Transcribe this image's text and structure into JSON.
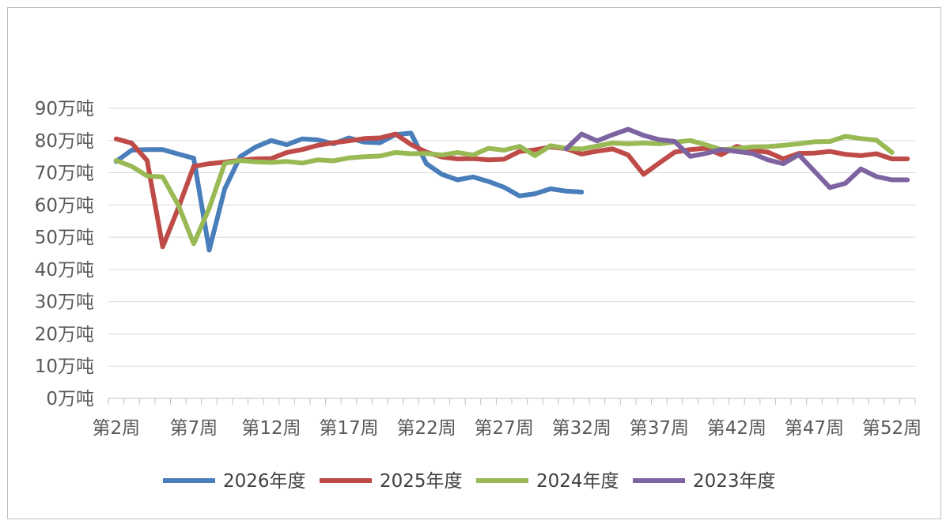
{
  "chart_data": {
    "type": "line",
    "title": "",
    "xlabel": "",
    "ylabel": "",
    "y_unit_suffix": "万吨",
    "ylim": [
      0,
      90
    ],
    "yticks": [
      0,
      10,
      20,
      30,
      40,
      50,
      60,
      70,
      80,
      90
    ],
    "ytick_labels": [
      "0万吨",
      "10万吨",
      "20万吨",
      "30万吨",
      "40万吨",
      "50万吨",
      "60万吨",
      "70万吨",
      "80万吨",
      "90万吨"
    ],
    "x_weeks": [
      2,
      3,
      4,
      5,
      6,
      7,
      8,
      9,
      10,
      11,
      12,
      13,
      14,
      15,
      16,
      17,
      18,
      19,
      20,
      21,
      22,
      23,
      24,
      25,
      26,
      27,
      28,
      29,
      30,
      31,
      32,
      33,
      34,
      35,
      36,
      37,
      38,
      39,
      40,
      41,
      42,
      43,
      44,
      45,
      46,
      47,
      48,
      49,
      50,
      51,
      52,
      53
    ],
    "xtick_labels": [
      "第2周",
      "第7周",
      "第12周",
      "第17周",
      "第22周",
      "第27周",
      "第32周",
      "第37周",
      "第42周",
      "第47周",
      "第52周"
    ],
    "grid": true,
    "legend_position": "bottom",
    "series": [
      {
        "name": "2026年度",
        "color": "#4a7ebb",
        "x": [
          2,
          3,
          4,
          5,
          6,
          7,
          8,
          9,
          10,
          11,
          12,
          13,
          14,
          15,
          16,
          17,
          18,
          19,
          20,
          21,
          22,
          23,
          24,
          25,
          26,
          27,
          28,
          29,
          30,
          31,
          32
        ],
        "values": [
          73.5,
          77,
          77.2,
          77.2,
          75.8,
          74.5,
          46,
          65,
          75,
          78,
          80,
          78.7,
          80.5,
          80.2,
          79,
          80.8,
          79.5,
          79.3,
          81.8,
          82.3,
          72.8,
          69.5,
          67.8,
          68.7,
          67.3,
          65.5,
          62.8,
          63.5,
          65,
          64.3,
          64
        ]
      },
      {
        "name": "2025年度",
        "color": "#be4b48",
        "x": [
          2,
          3,
          4,
          5,
          6,
          7,
          8,
          9,
          10,
          11,
          12,
          13,
          14,
          15,
          16,
          17,
          18,
          19,
          20,
          21,
          22,
          23,
          24,
          25,
          26,
          27,
          28,
          29,
          30,
          31,
          32,
          33,
          34,
          35,
          36,
          37,
          38,
          39,
          40,
          41,
          42,
          43,
          44,
          45,
          46,
          47,
          48,
          49,
          50,
          51,
          52,
          53
        ],
        "values": [
          80.5,
          79.2,
          73.8,
          47,
          59,
          72,
          72.8,
          73.3,
          73.9,
          74.3,
          74.4,
          76.3,
          77.2,
          78.5,
          79.3,
          79.9,
          80.6,
          80.8,
          82,
          78.8,
          76.4,
          74.9,
          74.3,
          74.4,
          74,
          74.2,
          76.6,
          77.1,
          78,
          77.5,
          75.8,
          76.7,
          77.4,
          75.5,
          69.5,
          73,
          76.4,
          77.2,
          77.6,
          75.6,
          78.2,
          76.9,
          76.4,
          74.3,
          76,
          76.1,
          76.6,
          75.7,
          75.3,
          75.9,
          74.3,
          74.3
        ]
      },
      {
        "name": "2024年度",
        "color": "#98b954",
        "x": [
          2,
          3,
          4,
          5,
          6,
          7,
          8,
          9,
          10,
          11,
          12,
          13,
          14,
          15,
          16,
          17,
          18,
          19,
          20,
          21,
          22,
          23,
          24,
          25,
          26,
          27,
          28,
          29,
          30,
          31,
          32,
          33,
          34,
          35,
          36,
          37,
          38,
          39,
          40,
          41,
          42,
          43,
          44,
          45,
          46,
          47,
          48,
          49,
          50,
          51,
          52
        ],
        "values": [
          73.8,
          72,
          69,
          68.7,
          60,
          48,
          59,
          72.9,
          73.8,
          73.4,
          73.2,
          73.5,
          73,
          74,
          73.7,
          74.6,
          75,
          75.2,
          76.3,
          75.9,
          76,
          75.5,
          76.3,
          75.5,
          77.6,
          77,
          78.2,
          75.3,
          78.4,
          77.6,
          77.4,
          78.3,
          79.2,
          79,
          79.2,
          79,
          79.5,
          80,
          78.7,
          77.2,
          77.5,
          78,
          78.1,
          78.5,
          79,
          79.6,
          79.7,
          81.3,
          80.6,
          80.1,
          76.3
        ]
      },
      {
        "name": "2023年度",
        "color": "#7e63a1",
        "x": [
          31,
          32,
          33,
          34,
          35,
          36,
          37,
          38,
          39,
          40,
          41,
          42,
          43,
          44,
          45,
          46,
          47,
          48,
          49,
          50,
          51,
          52,
          53
        ],
        "values": [
          77.4,
          82,
          79.9,
          81.8,
          83.5,
          81.6,
          80.3,
          79.7,
          75.1,
          76,
          77.2,
          76.6,
          76,
          74,
          72.8,
          75.6,
          70.5,
          65.4,
          66.7,
          71.2,
          68.8,
          67.8,
          67.8
        ]
      }
    ]
  }
}
